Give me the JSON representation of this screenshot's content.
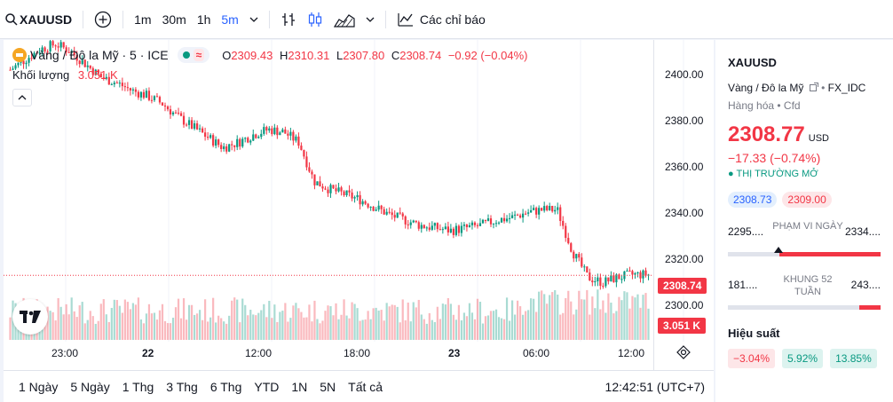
{
  "toolbar": {
    "symbol": "XAUUSD",
    "intervals": [
      "1m",
      "30m",
      "1h",
      "5m"
    ],
    "active_interval": "5m",
    "indicators_label": "Các chỉ báo"
  },
  "legend": {
    "title": "Vàng / Đô la Mỹ · 5 · ICE",
    "open_label": "O",
    "open": "2309.43",
    "high_label": "H",
    "high": "2310.31",
    "low_label": "L",
    "low": "2307.80",
    "close_label": "C",
    "close": "2308.74",
    "change": "−0.92 (−0.04%)",
    "volume_label": "Khối lượng",
    "volume": "3.051 K"
  },
  "axis": {
    "price_ticks": [
      "2400.00",
      "2380.00",
      "2360.00",
      "2340.00",
      "2320.00",
      "2300.00"
    ],
    "time_ticks": [
      "23:00",
      "22",
      "12:00",
      "18:00",
      "23",
      "06:00",
      "12:00"
    ],
    "last_price_tag": "2308.74",
    "volume_tag": "3.051 K"
  },
  "bottom": {
    "ranges": [
      "1 Ngày",
      "5 Ngày",
      "1 Thg",
      "3 Thg",
      "6 Thg",
      "YTD",
      "1N",
      "5N",
      "Tất cả"
    ],
    "clock": "12:42:51 (UTC+7)"
  },
  "side": {
    "symbol": "XAUUSD",
    "desc": "Vàng / Đô la Mỹ",
    "exchange": "FX_IDC",
    "category": "Hàng hóa • Cfd",
    "price": "2308.77",
    "currency": "USD",
    "change": "−17.33 (−0.74%)",
    "market_status": "● THỊ TRƯỜNG MỞ",
    "bid": "2308.73",
    "ask": "2309.00",
    "day_range": {
      "low": "2295....",
      "high": "2334....",
      "label": "PHẠM VI NGÀY",
      "position": 0.3
    },
    "week52_range": {
      "low": "181....",
      "high": "243....",
      "label": "KHUNG 52 TUẦN",
      "position": 0.9
    },
    "perf_title": "Hiệu suất",
    "perf": [
      "−3.04%",
      "5.92%",
      "13.85%"
    ]
  },
  "colors": {
    "up": "#089981",
    "down": "#f23645",
    "accent": "#2962ff"
  },
  "chart_data": {
    "type": "candlestick",
    "ylim": [
      2290,
      2405
    ],
    "close_series": [
      2388,
      2392,
      2396,
      2398,
      2395,
      2390,
      2385,
      2383,
      2380,
      2378,
      2375,
      2370,
      2366,
      2362,
      2358,
      2360,
      2363,
      2365,
      2364,
      2360,
      2345,
      2342,
      2340,
      2338,
      2335,
      2332,
      2330,
      2328,
      2327,
      2326,
      2327,
      2328,
      2330,
      2331,
      2333,
      2334,
      2334,
      2318,
      2308,
      2306,
      2308,
      2309,
      2309
    ]
  }
}
